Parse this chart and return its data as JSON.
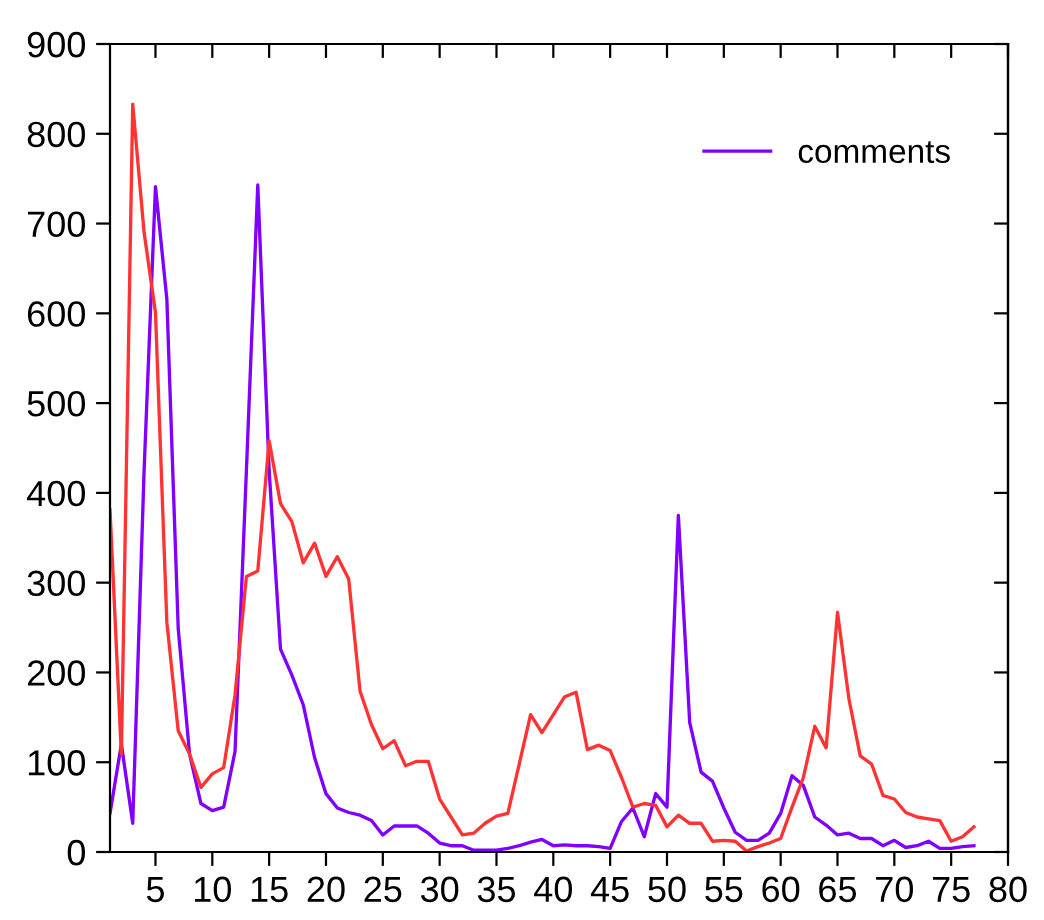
{
  "chart_data": {
    "type": "line",
    "x": [
      1,
      2,
      3,
      4,
      5,
      6,
      7,
      8,
      9,
      10,
      11,
      12,
      13,
      14,
      15,
      16,
      17,
      18,
      19,
      20,
      21,
      22,
      23,
      24,
      25,
      26,
      27,
      28,
      29,
      30,
      31,
      32,
      33,
      34,
      35,
      36,
      37,
      38,
      39,
      40,
      41,
      42,
      43,
      44,
      45,
      46,
      47,
      48,
      49,
      50,
      51,
      52,
      53,
      54,
      55,
      56,
      57,
      58,
      59,
      60,
      61,
      62,
      63,
      64,
      65,
      66,
      67,
      68,
      69,
      70,
      71,
      72,
      73,
      74,
      75,
      76,
      77
    ],
    "series": [
      {
        "name": "comments",
        "color": "#8000ff",
        "values": [
          43,
          120,
          32,
          425,
          741,
          616,
          249,
          109,
          54,
          46,
          50,
          112,
          425,
          743,
          425,
          226,
          197,
          164,
          105,
          65,
          49,
          44,
          41,
          35,
          19,
          29,
          29,
          29,
          21,
          10,
          7,
          7,
          2,
          2,
          2,
          4,
          7,
          11,
          14,
          7,
          8,
          7,
          7,
          6,
          4,
          34,
          49,
          17,
          65,
          50,
          375,
          144,
          89,
          79,
          49,
          22,
          13,
          13,
          21,
          43,
          85,
          74,
          39,
          30,
          19,
          21,
          15,
          15,
          7,
          13,
          5,
          7,
          12,
          4,
          4,
          6,
          7
        ]
      },
      {
        "color": "#ff3333",
        "values": [
          381,
          109,
          833,
          690,
          601,
          256,
          135,
          109,
          72,
          87,
          94,
          175,
          307,
          313,
          458,
          388,
          368,
          322,
          344,
          307,
          329,
          304,
          179,
          142,
          115,
          124,
          96,
          101,
          101,
          59,
          39,
          19,
          21,
          32,
          40,
          43,
          98,
          153,
          133,
          153,
          173,
          178,
          114,
          119,
          113,
          83,
          50,
          54,
          52,
          28,
          41,
          32,
          32,
          12,
          13,
          12,
          1,
          6,
          10,
          15,
          50,
          83,
          140,
          116,
          267,
          171,
          107,
          98,
          63,
          59,
          44,
          39,
          37,
          35,
          12,
          17,
          28
        ]
      }
    ],
    "xlim": [
      1,
      80
    ],
    "xticks": [
      5,
      10,
      15,
      20,
      25,
      30,
      35,
      40,
      45,
      50,
      55,
      60,
      65,
      70,
      75,
      80
    ],
    "ylim": [
      0,
      900
    ],
    "yticks": [
      0,
      100,
      200,
      300,
      400,
      500,
      600,
      700,
      800,
      900
    ],
    "grid": false,
    "legend": "top right"
  }
}
